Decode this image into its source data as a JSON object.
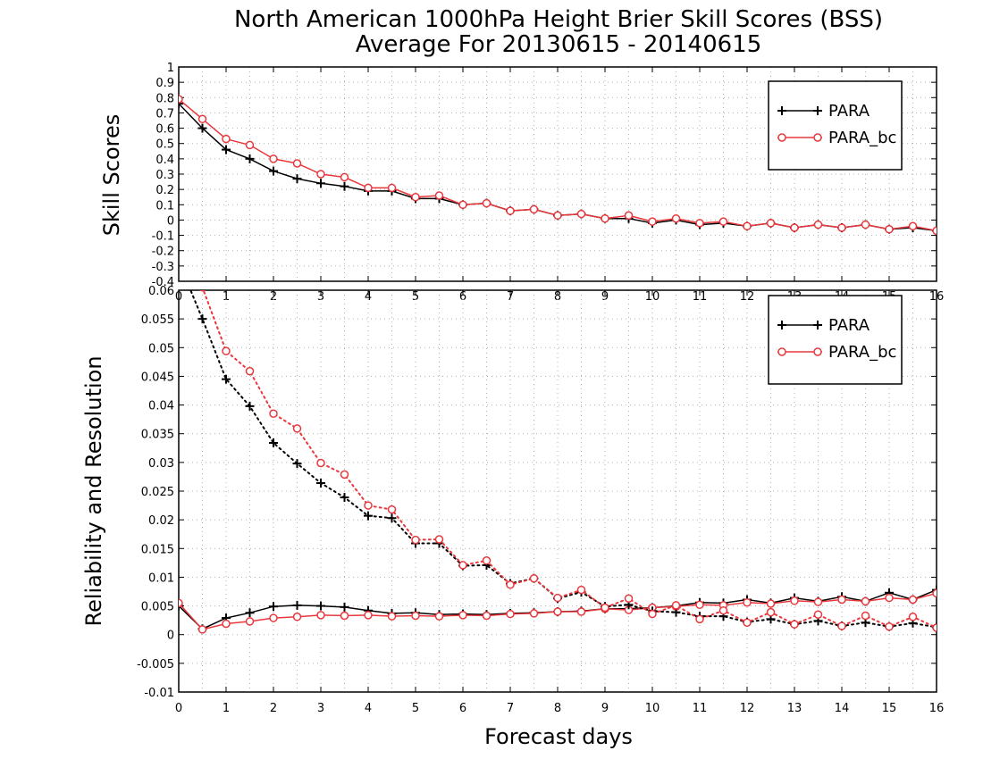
{
  "title_line1": "North American 1000hPa Height Brier Skill Scores (BSS)",
  "title_line2": "Average For 20130615 - 20140615",
  "xlabel": "Forecast days",
  "colors": {
    "PARA": "#000000",
    "PARA_bc": "#e8383d",
    "grid": "#b0b0b0"
  },
  "chart_data": [
    {
      "type": "line",
      "ylabel": "Skill Scores",
      "xlim": [
        0,
        16
      ],
      "ylim": [
        -0.4,
        1
      ],
      "yticks": [
        -0.4,
        -0.3,
        -0.2,
        -0.1,
        0,
        0.1,
        0.2,
        0.3,
        0.4,
        0.5,
        0.6,
        0.7,
        0.8,
        0.9,
        1
      ],
      "ytick_labels": [
        "-0.4",
        "-0.3",
        "-0.2",
        "-0.1",
        "0",
        "0.1",
        "0.2",
        "0.3",
        "0.4",
        "0.5",
        "0.6",
        "0.7",
        "0.8",
        "0.9",
        "1"
      ],
      "xticks": [
        0,
        1,
        2,
        3,
        4,
        5,
        6,
        7,
        8,
        9,
        10,
        11,
        12,
        13,
        14,
        15,
        16
      ],
      "grid": true,
      "legend": "top-right",
      "x": [
        0,
        0.5,
        1,
        1.5,
        2,
        2.5,
        3,
        3.5,
        4,
        4.5,
        5,
        5.5,
        6,
        6.5,
        7,
        7.5,
        8,
        8.5,
        9,
        9.5,
        10,
        10.5,
        11,
        11.5,
        12,
        12.5,
        13,
        13.5,
        14,
        14.5,
        15,
        15.5,
        16
      ],
      "series": [
        {
          "name": "PARA",
          "marker": "plus",
          "dash": "solid",
          "values": [
            0.76,
            0.6,
            0.46,
            0.4,
            0.32,
            0.27,
            0.24,
            0.22,
            0.19,
            0.19,
            0.14,
            0.14,
            0.1,
            0.11,
            0.06,
            0.07,
            0.03,
            0.04,
            0.01,
            0.01,
            -0.02,
            0.0,
            -0.03,
            -0.02,
            -0.04,
            -0.02,
            -0.05,
            -0.03,
            -0.05,
            -0.03,
            -0.06,
            -0.05,
            -0.07
          ]
        },
        {
          "name": "PARA_bc",
          "marker": "circle",
          "dash": "solid",
          "values": [
            0.79,
            0.66,
            0.53,
            0.49,
            0.4,
            0.37,
            0.3,
            0.28,
            0.21,
            0.21,
            0.15,
            0.16,
            0.1,
            0.11,
            0.06,
            0.07,
            0.03,
            0.04,
            0.01,
            0.03,
            -0.01,
            0.01,
            -0.02,
            -0.01,
            -0.04,
            -0.02,
            -0.05,
            -0.03,
            -0.05,
            -0.03,
            -0.06,
            -0.04,
            -0.07
          ]
        }
      ]
    },
    {
      "type": "line",
      "ylabel": "Reliability and Resolution",
      "xlim": [
        0,
        16
      ],
      "ylim": [
        -0.01,
        0.06
      ],
      "yticks": [
        -0.01,
        -0.005,
        0,
        0.005,
        0.01,
        0.015,
        0.02,
        0.025,
        0.03,
        0.035,
        0.04,
        0.045,
        0.05,
        0.055,
        0.06
      ],
      "ytick_labels": [
        "-0.01",
        "-0.005",
        "0",
        "0.005",
        "0.01",
        "0.015",
        "0.02",
        "0.025",
        "0.03",
        "0.035",
        "0.04",
        "0.045",
        "0.05",
        "0.055",
        "0.06"
      ],
      "xticks": [
        0,
        1,
        2,
        3,
        4,
        5,
        6,
        7,
        8,
        9,
        10,
        11,
        12,
        13,
        14,
        15,
        16
      ],
      "grid": true,
      "legend": "top-right",
      "x": [
        0,
        0.5,
        1,
        1.5,
        2,
        2.5,
        3,
        3.5,
        4,
        4.5,
        5,
        5.5,
        6,
        6.5,
        7,
        7.5,
        8,
        8.5,
        9,
        9.5,
        10,
        10.5,
        11,
        11.5,
        12,
        12.5,
        13,
        13.5,
        14,
        14.5,
        15,
        15.5,
        16
      ],
      "series": [
        {
          "name": "PARA",
          "metric": "resolution",
          "marker": "plus",
          "dash": "solid",
          "values": [
            0.005,
            0.001,
            0.0029,
            0.0038,
            0.0049,
            0.0051,
            0.005,
            0.0048,
            0.0042,
            0.0037,
            0.0038,
            0.0035,
            0.0036,
            0.0035,
            0.0037,
            0.0038,
            0.004,
            0.0041,
            0.0045,
            0.0045,
            0.0047,
            0.005,
            0.0056,
            0.0055,
            0.0061,
            0.0055,
            0.0064,
            0.0058,
            0.0066,
            0.0058,
            0.0073,
            0.0061,
            0.0078
          ]
        },
        {
          "name": "PARA_bc",
          "metric": "resolution",
          "marker": "circle",
          "dash": "solid",
          "values": [
            0.0055,
            0.0009,
            0.0019,
            0.0023,
            0.0029,
            0.0031,
            0.0034,
            0.0033,
            0.0034,
            0.0032,
            0.0033,
            0.0032,
            0.0034,
            0.0033,
            0.0036,
            0.0037,
            0.004,
            0.004,
            0.0045,
            0.0043,
            0.0047,
            0.0049,
            0.0052,
            0.0051,
            0.0056,
            0.0054,
            0.0059,
            0.0057,
            0.0061,
            0.0058,
            0.0064,
            0.0061,
            0.0072
          ]
        },
        {
          "name": "PARA",
          "metric": "reliability",
          "marker": "plus",
          "dash": "dotted",
          "values": [
            0.065,
            0.055,
            0.0445,
            0.0398,
            0.0334,
            0.0298,
            0.0264,
            0.0239,
            0.0207,
            0.0203,
            0.0159,
            0.0159,
            0.012,
            0.0121,
            0.0089,
            0.0098,
            0.0063,
            0.0074,
            0.0049,
            0.0052,
            0.0041,
            0.0039,
            0.0032,
            0.0032,
            0.0022,
            0.0027,
            0.0018,
            0.0024,
            0.0015,
            0.0021,
            0.0014,
            0.002,
            0.0013
          ]
        },
        {
          "name": "PARA_bc",
          "metric": "reliability",
          "marker": "circle",
          "dash": "dotted",
          "values": [
            0.07,
            0.0605,
            0.0494,
            0.0459,
            0.0385,
            0.0359,
            0.0299,
            0.0279,
            0.0225,
            0.0218,
            0.0165,
            0.0166,
            0.0121,
            0.0129,
            0.0087,
            0.0098,
            0.0064,
            0.0078,
            0.0047,
            0.0063,
            0.0036,
            0.0051,
            0.0027,
            0.0042,
            0.0021,
            0.0039,
            0.0018,
            0.0035,
            0.0015,
            0.0033,
            0.0014,
            0.0031,
            0.0012
          ]
        }
      ]
    }
  ]
}
